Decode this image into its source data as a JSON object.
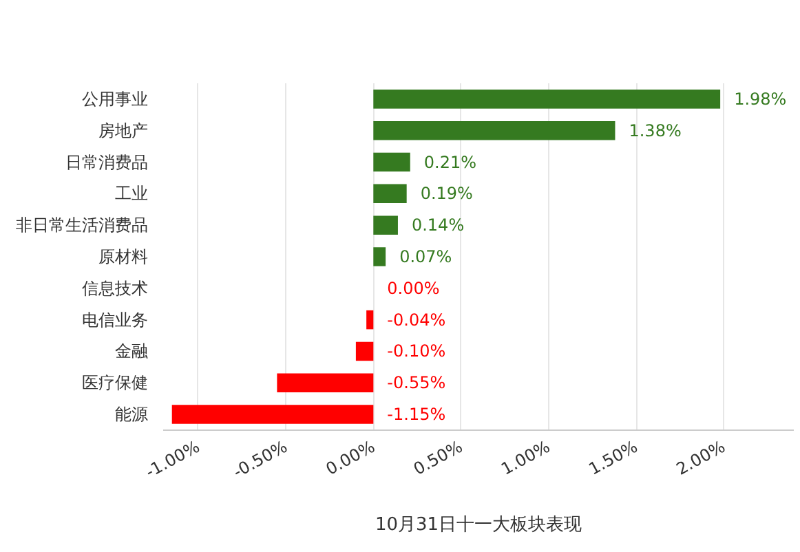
{
  "chart_data": {
    "type": "bar",
    "orientation": "horizontal",
    "title": "10月31日十一大板块表现",
    "categories": [
      "公用事业",
      "房地产",
      "日常消费品",
      "工业",
      "非日常生活消费品",
      "原材料",
      "信息技术",
      "电信业务",
      "金融",
      "医疗保健",
      "能源"
    ],
    "values": [
      1.98,
      1.38,
      0.21,
      0.19,
      0.14,
      0.07,
      0.0,
      -0.04,
      -0.1,
      -0.55,
      -1.15
    ],
    "colors": [
      "#357a20",
      "#357a20",
      "#357a20",
      "#357a20",
      "#357a20",
      "#357a20",
      "#ff0000",
      "#ff0000",
      "#ff0000",
      "#ff0000",
      "#ff0000"
    ],
    "value_labels": [
      "1.98%",
      "1.38%",
      "0.21%",
      "0.19%",
      "0.14%",
      "0.07%",
      "0.00%",
      "-0.04%",
      "-0.10%",
      "-0.55%",
      "-1.15%"
    ],
    "xlim": [
      -1.2,
      2.4
    ],
    "xticks": [
      {
        "value": -1.0,
        "label": "-1.00%"
      },
      {
        "value": -0.5,
        "label": "-0.50%"
      },
      {
        "value": 0.0,
        "label": "0.00%"
      },
      {
        "value": 0.5,
        "label": "0.50%"
      },
      {
        "value": 1.0,
        "label": "1.00%"
      },
      {
        "value": 1.5,
        "label": "1.50%"
      },
      {
        "value": 2.0,
        "label": "2.00%"
      }
    ],
    "grid": "x"
  }
}
